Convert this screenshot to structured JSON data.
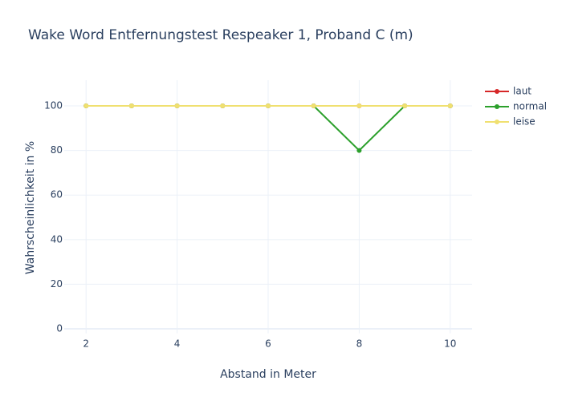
{
  "chart_data": {
    "type": "line",
    "title": "Wake Word Entfernungstest Respeaker 1, Proband C (m)",
    "x_label": "Abstand in Meter",
    "y_label": "Wahrscheinlichkeit in %",
    "x": [
      2,
      3,
      4,
      5,
      6,
      7,
      8,
      9,
      10
    ],
    "series": [
      {
        "name": "laut",
        "color": "#d62728",
        "values": [
          100,
          100,
          100,
          100,
          100,
          100,
          100,
          100,
          100
        ]
      },
      {
        "name": "normal",
        "color": "#2ca02c",
        "values": [
          100,
          100,
          100,
          100,
          100,
          100,
          80,
          100,
          100
        ]
      },
      {
        "name": "leise",
        "color": "#f0e070",
        "values": [
          100,
          100,
          100,
          100,
          100,
          100,
          100,
          100,
          100
        ]
      }
    ],
    "xlim": [
      1.52,
      10.48
    ],
    "xticks": [
      2,
      4,
      6,
      8,
      10
    ],
    "ylim": [
      -2,
      111.5
    ],
    "yticks": [
      0,
      20,
      40,
      60,
      80,
      100
    ],
    "grid": true,
    "legend": "top-right"
  }
}
